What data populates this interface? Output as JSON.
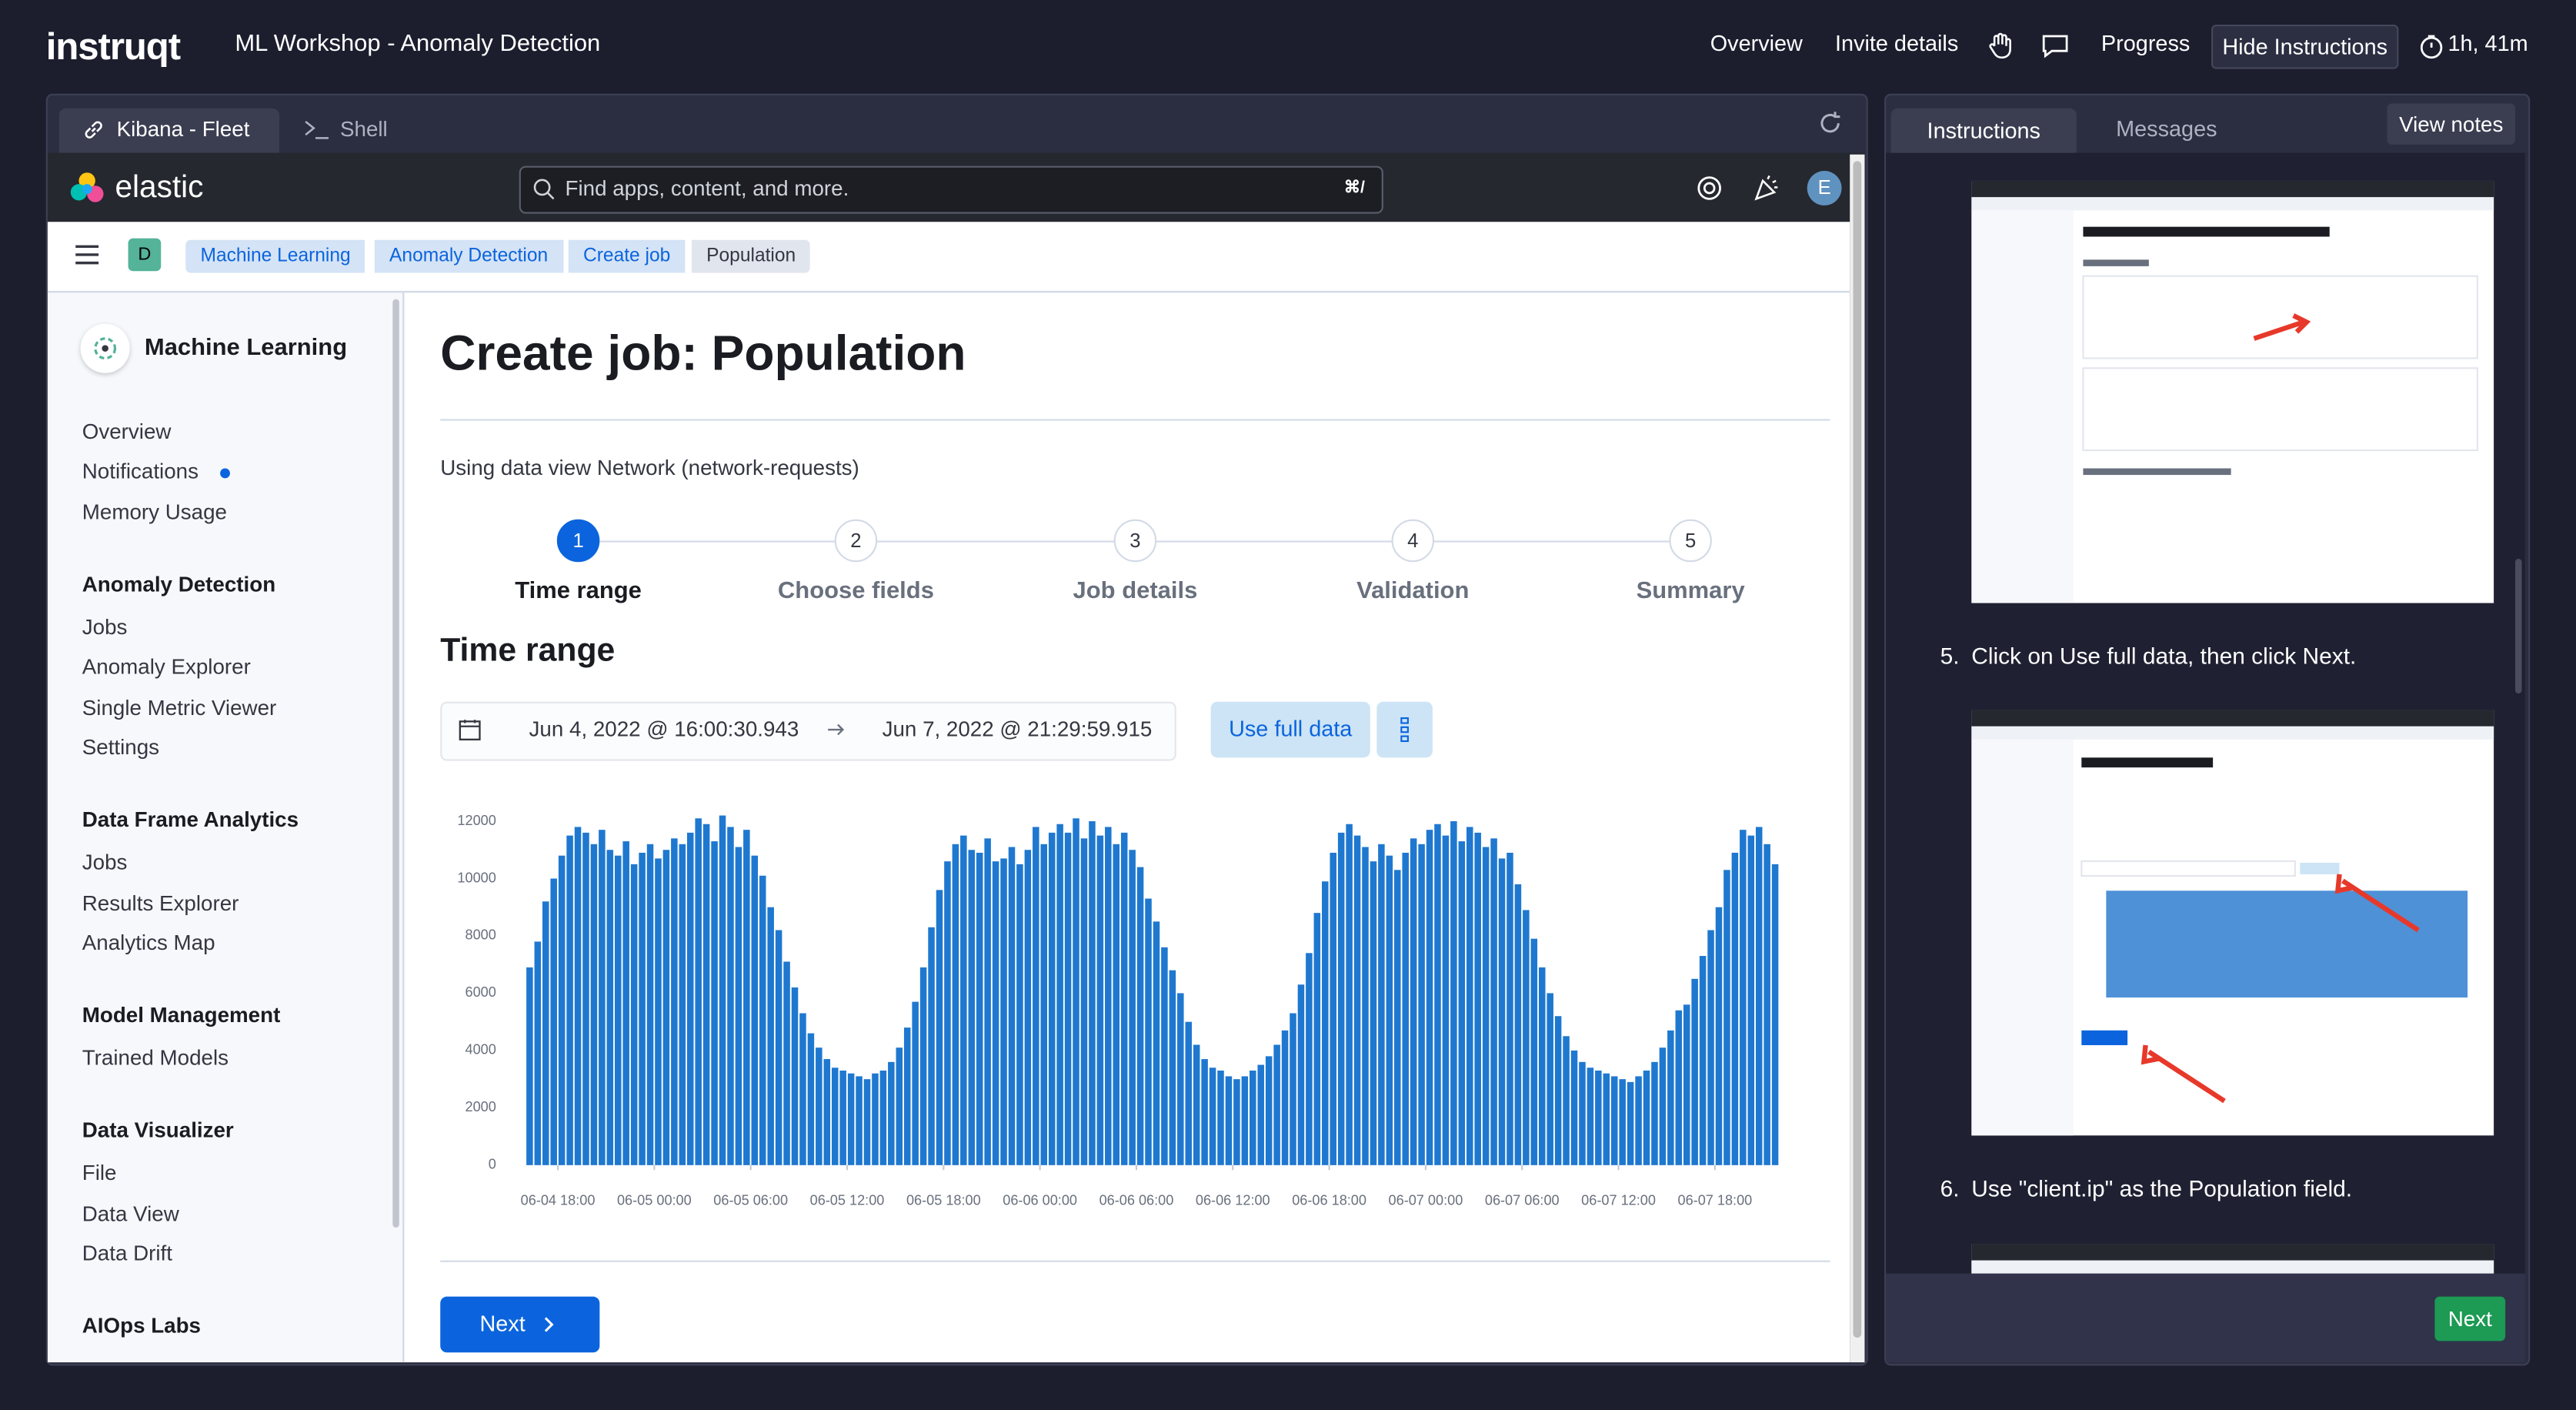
{
  "header": {
    "logo": "instruqt",
    "title": "ML Workshop - Anomaly Detection",
    "nav": [
      "Overview",
      "Invite details",
      "Progress"
    ],
    "hide_button": "Hide Instructions",
    "timer": "1h, 41m"
  },
  "tabs": [
    "Kibana - Fleet",
    "Shell"
  ],
  "kibana": {
    "brand": "elastic",
    "search_placeholder": "Find apps, content, and more.",
    "shortcut": "⌘/",
    "avatar": "E",
    "space": "D",
    "breadcrumbs": [
      "Machine Learning",
      "Anomaly Detection",
      "Create job",
      "Population"
    ]
  },
  "sidebar": {
    "title": "Machine Learning",
    "top_items": [
      "Overview",
      "Notifications",
      "Memory Usage"
    ],
    "sections": [
      {
        "heading": "Anomaly Detection",
        "items": [
          "Jobs",
          "Anomaly Explorer",
          "Single Metric Viewer",
          "Settings"
        ]
      },
      {
        "heading": "Data Frame Analytics",
        "items": [
          "Jobs",
          "Results Explorer",
          "Analytics Map"
        ]
      },
      {
        "heading": "Model Management",
        "items": [
          "Trained Models"
        ]
      },
      {
        "heading": "Data Visualizer",
        "items": [
          "File",
          "Data View",
          "Data Drift"
        ]
      },
      {
        "heading": "AIOps Labs",
        "items": []
      }
    ]
  },
  "main": {
    "title": "Create job: Population",
    "data_view": "Using data view Network (network-requests)",
    "steps": [
      {
        "number": "1",
        "label": "Time range"
      },
      {
        "number": "2",
        "label": "Choose fields"
      },
      {
        "number": "3",
        "label": "Job details"
      },
      {
        "number": "4",
        "label": "Validation"
      },
      {
        "number": "5",
        "label": "Summary"
      }
    ],
    "section_title": "Time range",
    "start": "Jun 4, 2022 @ 16:00:30.943",
    "end": "Jun 7, 2022 @ 21:29:59.915",
    "use_full_data": "Use full data",
    "next": "Next"
  },
  "chart_data": {
    "type": "bar",
    "color": "#1f78cf",
    "grid": false,
    "x": [
      16,
      16.5,
      17,
      17.5,
      18,
      18.5,
      19,
      19.5,
      20,
      20.5,
      21,
      21.5,
      22,
      22.5,
      23,
      23.5,
      24,
      24.5,
      25,
      25.5,
      26,
      26.5,
      27,
      27.5,
      28,
      28.5,
      29,
      29.5,
      30,
      30.5,
      31,
      31.5,
      32,
      32.5,
      33,
      33.5,
      34,
      34.5,
      35,
      35.5,
      36,
      36.5,
      37,
      37.5,
      38,
      38.5,
      39,
      39.5,
      40,
      40.5,
      41,
      41.5,
      42,
      42.5,
      43,
      43.5,
      44,
      44.5,
      45,
      45.5,
      46,
      46.5,
      47,
      47.5,
      48,
      48.5,
      49,
      49.5,
      50,
      50.5,
      51,
      51.5,
      52,
      52.5,
      53,
      53.5,
      54,
      54.5,
      55,
      55.5,
      56,
      56.5,
      57,
      57.5,
      58,
      58.5,
      59,
      59.5,
      60,
      60.5,
      61,
      61.5,
      62,
      62.5,
      63,
      63.5,
      64,
      64.5,
      65,
      65.5,
      66,
      66.5,
      67,
      67.5,
      68,
      68.5,
      69,
      69.5,
      70,
      70.5,
      71,
      71.5,
      72,
      72.5,
      73,
      73.5,
      74,
      74.5,
      75,
      75.5,
      76,
      76.5,
      77,
      77.5,
      78,
      78.5,
      79,
      79.5,
      80,
      80.5,
      81,
      81.5,
      82,
      82.5,
      83,
      83.5,
      84,
      84.5,
      85,
      85.5,
      86,
      86.5,
      87,
      87.5,
      88,
      88.5,
      89,
      89.5,
      90,
      90.5,
      91,
      91.5,
      92,
      92.5,
      93,
      93.5
    ],
    "values": [
      6900,
      7800,
      9200,
      10000,
      10800,
      11500,
      11800,
      11600,
      11200,
      11700,
      11000,
      10800,
      11300,
      10500,
      10900,
      11200,
      10700,
      11000,
      11400,
      11200,
      11600,
      12100,
      11900,
      11300,
      12200,
      11800,
      11100,
      11700,
      10800,
      10100,
      9000,
      8200,
      7100,
      6200,
      5300,
      4600,
      4100,
      3700,
      3400,
      3300,
      3200,
      3100,
      3000,
      3200,
      3300,
      3600,
      4100,
      4800,
      5700,
      6900,
      8300,
      9600,
      10600,
      11200,
      11500,
      11000,
      10900,
      11400,
      10600,
      10700,
      11100,
      10500,
      11000,
      11800,
      11200,
      11600,
      11900,
      11600,
      12100,
      11400,
      12000,
      11500,
      11800,
      11200,
      11600,
      11000,
      10400,
      9300,
      8500,
      7600,
      6800,
      6000,
      5000,
      4200,
      3700,
      3400,
      3300,
      3100,
      3000,
      3100,
      3300,
      3500,
      3800,
      4200,
      4700,
      5300,
      6300,
      7400,
      8800,
      9900,
      10900,
      11600,
      11900,
      11500,
      11100,
      10600,
      11200,
      10800,
      10300,
      10900,
      11400,
      11200,
      11700,
      11900,
      11500,
      12000,
      11300,
      11800,
      11600,
      11100,
      11400,
      10700,
      10900,
      9800,
      8900,
      7900,
      6900,
      6000,
      5200,
      4500,
      4000,
      3600,
      3400,
      3300,
      3200,
      3100,
      3000,
      2900,
      3100,
      3300,
      3600,
      4100,
      4700,
      5400,
      5600,
      6500,
      7300,
      8200,
      9000,
      10300,
      10900,
      11700,
      11500,
      11800,
      11200,
      10500
    ],
    "xlim": [
      16,
      94
    ],
    "xticks": [
      {
        "value": 18,
        "label": "06-04 18:00"
      },
      {
        "value": 24,
        "label": "06-05 00:00"
      },
      {
        "value": 30,
        "label": "06-05 06:00"
      },
      {
        "value": 36,
        "label": "06-05 12:00"
      },
      {
        "value": 42,
        "label": "06-05 18:00"
      },
      {
        "value": 48,
        "label": "06-06 00:00"
      },
      {
        "value": 54,
        "label": "06-06 06:00"
      },
      {
        "value": 60,
        "label": "06-06 12:00"
      },
      {
        "value": 66,
        "label": "06-06 18:00"
      },
      {
        "value": 72,
        "label": "06-07 00:00"
      },
      {
        "value": 78,
        "label": "06-07 06:00"
      },
      {
        "value": 84,
        "label": "06-07 12:00"
      },
      {
        "value": 90,
        "label": "06-07 18:00"
      }
    ],
    "ylim": [
      0,
      12500
    ],
    "yticks": [
      0,
      2000,
      4000,
      6000,
      8000,
      10000,
      12000
    ]
  },
  "instructions": {
    "tabs": [
      "Instructions",
      "Messages"
    ],
    "view_notes": "View notes",
    "step_numbers": [
      "5.",
      "6."
    ],
    "steps": [
      "Click on Use full data, then click Next.",
      "Use \"client.ip\" as the Population field."
    ],
    "next": "Next"
  }
}
